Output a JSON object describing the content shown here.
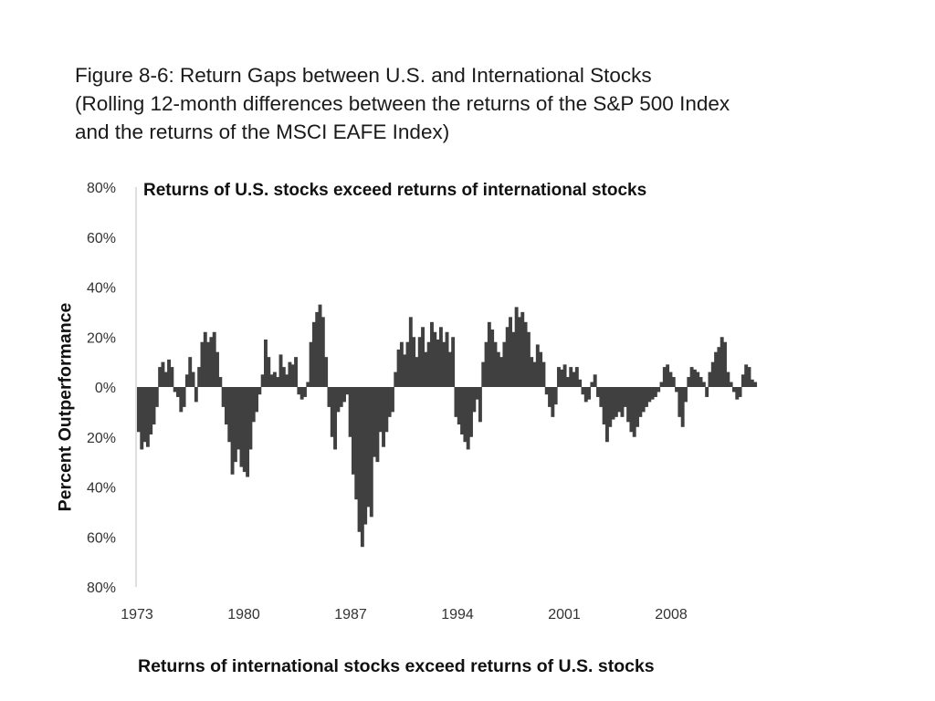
{
  "title": {
    "line1": "Figure 8-6: Return Gaps between U.S. and International Stocks",
    "line2": "(Rolling 12-month differences between the returns of the S&P 500 Index",
    "line3": "and the returns of the MSCI EAFE Index)"
  },
  "annotations": {
    "top": "Returns of U.S. stocks exceed returns of international stocks",
    "bottom": "Returns of international stocks exceed returns of U.S. stocks"
  },
  "colors": {
    "bars": "#404040",
    "axis": "#bfbfbf",
    "text": "#333333"
  },
  "chart_data": {
    "type": "bar",
    "ylabel": "Percent Outperformance",
    "ylim": [
      -80,
      80
    ],
    "yticks": [
      80,
      60,
      40,
      20,
      0,
      -20,
      -40,
      -60,
      -80
    ],
    "ytick_labels": [
      "80%",
      "60%",
      "40%",
      "20%",
      "0%",
      "20%",
      "40%",
      "60%",
      "80%"
    ],
    "xticks": [
      1973,
      1980,
      1987,
      1994,
      2001,
      2008
    ],
    "xlim": [
      1973,
      2015
    ],
    "grid": false,
    "legend": "none",
    "x_unit": "year",
    "points": [
      [
        1973.0,
        -18
      ],
      [
        1973.2,
        -25
      ],
      [
        1973.4,
        -22
      ],
      [
        1973.6,
        -24
      ],
      [
        1973.8,
        -19
      ],
      [
        1974.0,
        -15
      ],
      [
        1974.2,
        -8
      ],
      [
        1974.4,
        8
      ],
      [
        1974.6,
        10
      ],
      [
        1974.8,
        6
      ],
      [
        1975.0,
        11
      ],
      [
        1975.2,
        8
      ],
      [
        1975.4,
        -2
      ],
      [
        1975.6,
        -4
      ],
      [
        1975.8,
        -10
      ],
      [
        1976.0,
        -8
      ],
      [
        1976.2,
        5
      ],
      [
        1976.4,
        12
      ],
      [
        1976.6,
        6
      ],
      [
        1976.8,
        -6
      ],
      [
        1977.0,
        8
      ],
      [
        1977.2,
        18
      ],
      [
        1977.4,
        22
      ],
      [
        1977.6,
        18
      ],
      [
        1977.8,
        20
      ],
      [
        1978.0,
        22
      ],
      [
        1978.2,
        14
      ],
      [
        1978.4,
        4
      ],
      [
        1978.6,
        -8
      ],
      [
        1978.8,
        -15
      ],
      [
        1979.0,
        -22
      ],
      [
        1979.2,
        -35
      ],
      [
        1979.4,
        -30
      ],
      [
        1979.6,
        -25
      ],
      [
        1979.8,
        -32
      ],
      [
        1980.0,
        -34
      ],
      [
        1980.2,
        -36
      ],
      [
        1980.4,
        -25
      ],
      [
        1980.6,
        -14
      ],
      [
        1980.8,
        -10
      ],
      [
        1981.0,
        -3
      ],
      [
        1981.2,
        5
      ],
      [
        1981.4,
        19
      ],
      [
        1981.6,
        12
      ],
      [
        1981.8,
        5
      ],
      [
        1982.0,
        6
      ],
      [
        1982.2,
        4
      ],
      [
        1982.4,
        13
      ],
      [
        1982.6,
        8
      ],
      [
        1982.8,
        5
      ],
      [
        1983.0,
        10
      ],
      [
        1983.2,
        9
      ],
      [
        1983.4,
        12
      ],
      [
        1983.6,
        -3
      ],
      [
        1983.8,
        -5
      ],
      [
        1984.0,
        -4
      ],
      [
        1984.2,
        2
      ],
      [
        1984.4,
        18
      ],
      [
        1984.6,
        26
      ],
      [
        1984.8,
        30
      ],
      [
        1985.0,
        33
      ],
      [
        1985.2,
        28
      ],
      [
        1985.4,
        12
      ],
      [
        1985.6,
        -8
      ],
      [
        1985.8,
        -20
      ],
      [
        1986.0,
        -25
      ],
      [
        1986.2,
        -10
      ],
      [
        1986.4,
        -8
      ],
      [
        1986.6,
        -6
      ],
      [
        1986.8,
        -3
      ],
      [
        1987.0,
        -20
      ],
      [
        1987.2,
        -35
      ],
      [
        1987.4,
        -45
      ],
      [
        1987.6,
        -58
      ],
      [
        1987.8,
        -64
      ],
      [
        1988.0,
        -55
      ],
      [
        1988.2,
        -48
      ],
      [
        1988.4,
        -52
      ],
      [
        1988.6,
        -28
      ],
      [
        1988.8,
        -30
      ],
      [
        1989.0,
        -18
      ],
      [
        1989.2,
        -24
      ],
      [
        1989.4,
        -18
      ],
      [
        1989.6,
        -12
      ],
      [
        1989.8,
        -10
      ],
      [
        1990.0,
        6
      ],
      [
        1990.2,
        15
      ],
      [
        1990.4,
        18
      ],
      [
        1990.6,
        13
      ],
      [
        1990.8,
        18
      ],
      [
        1991.0,
        28
      ],
      [
        1991.2,
        20
      ],
      [
        1991.4,
        12
      ],
      [
        1991.6,
        20
      ],
      [
        1991.8,
        24
      ],
      [
        1992.0,
        14
      ],
      [
        1992.2,
        18
      ],
      [
        1992.4,
        26
      ],
      [
        1992.6,
        22
      ],
      [
        1992.8,
        19
      ],
      [
        1993.0,
        24
      ],
      [
        1993.2,
        18
      ],
      [
        1993.4,
        22
      ],
      [
        1993.6,
        14
      ],
      [
        1993.8,
        20
      ],
      [
        1994.0,
        -12
      ],
      [
        1994.2,
        -15
      ],
      [
        1994.4,
        -19
      ],
      [
        1994.6,
        -22
      ],
      [
        1994.8,
        -25
      ],
      [
        1995.0,
        -20
      ],
      [
        1995.2,
        -10
      ],
      [
        1995.4,
        -5
      ],
      [
        1995.6,
        -14
      ],
      [
        1995.8,
        10
      ],
      [
        1996.0,
        18
      ],
      [
        1996.2,
        26
      ],
      [
        1996.4,
        23
      ],
      [
        1996.6,
        18
      ],
      [
        1996.8,
        14
      ],
      [
        1997.0,
        12
      ],
      [
        1997.2,
        18
      ],
      [
        1997.4,
        24
      ],
      [
        1997.6,
        28
      ],
      [
        1997.8,
        22
      ],
      [
        1998.0,
        32
      ],
      [
        1998.2,
        28
      ],
      [
        1998.4,
        30
      ],
      [
        1998.6,
        26
      ],
      [
        1998.8,
        22
      ],
      [
        1999.0,
        12
      ],
      [
        1999.2,
        10
      ],
      [
        1999.4,
        17
      ],
      [
        1999.6,
        14
      ],
      [
        1999.8,
        10
      ],
      [
        2000.0,
        -3
      ],
      [
        2000.2,
        -8
      ],
      [
        2000.4,
        -12
      ],
      [
        2000.6,
        -7
      ],
      [
        2000.8,
        8
      ],
      [
        2001.0,
        7
      ],
      [
        2001.2,
        9
      ],
      [
        2001.4,
        4
      ],
      [
        2001.6,
        8
      ],
      [
        2001.8,
        6
      ],
      [
        2002.0,
        8
      ],
      [
        2002.2,
        3
      ],
      [
        2002.4,
        -3
      ],
      [
        2002.6,
        -6
      ],
      [
        2002.8,
        -5
      ],
      [
        2003.0,
        2
      ],
      [
        2003.2,
        5
      ],
      [
        2003.4,
        -4
      ],
      [
        2003.6,
        -8
      ],
      [
        2003.8,
        -15
      ],
      [
        2004.0,
        -22
      ],
      [
        2004.2,
        -16
      ],
      [
        2004.4,
        -13
      ],
      [
        2004.6,
        -12
      ],
      [
        2004.8,
        -10
      ],
      [
        2005.0,
        -12
      ],
      [
        2005.2,
        -8
      ],
      [
        2005.4,
        -14
      ],
      [
        2005.6,
        -18
      ],
      [
        2005.8,
        -20
      ],
      [
        2006.0,
        -16
      ],
      [
        2006.2,
        -12
      ],
      [
        2006.4,
        -10
      ],
      [
        2006.6,
        -8
      ],
      [
        2006.8,
        -6
      ],
      [
        2007.0,
        -5
      ],
      [
        2007.2,
        -4
      ],
      [
        2007.4,
        -2
      ],
      [
        2007.6,
        2
      ],
      [
        2007.8,
        8
      ],
      [
        2008.0,
        9
      ],
      [
        2008.2,
        6
      ],
      [
        2008.4,
        4
      ],
      [
        2008.6,
        -2
      ],
      [
        2008.8,
        -12
      ],
      [
        2009.0,
        -16
      ],
      [
        2009.2,
        -6
      ],
      [
        2009.4,
        4
      ],
      [
        2009.6,
        8
      ],
      [
        2009.8,
        7
      ],
      [
        2010.0,
        6
      ],
      [
        2010.2,
        4
      ],
      [
        2010.4,
        2
      ],
      [
        2010.6,
        -4
      ],
      [
        2010.8,
        6
      ],
      [
        2011.0,
        10
      ],
      [
        2011.2,
        14
      ],
      [
        2011.4,
        16
      ],
      [
        2011.6,
        20
      ],
      [
        2011.8,
        18
      ],
      [
        2012.0,
        6
      ],
      [
        2012.2,
        2
      ],
      [
        2012.4,
        -2
      ],
      [
        2012.6,
        -5
      ],
      [
        2012.8,
        -4
      ],
      [
        2013.0,
        5
      ],
      [
        2013.2,
        9
      ],
      [
        2013.4,
        8
      ],
      [
        2013.6,
        3
      ],
      [
        2013.8,
        2
      ]
    ]
  }
}
